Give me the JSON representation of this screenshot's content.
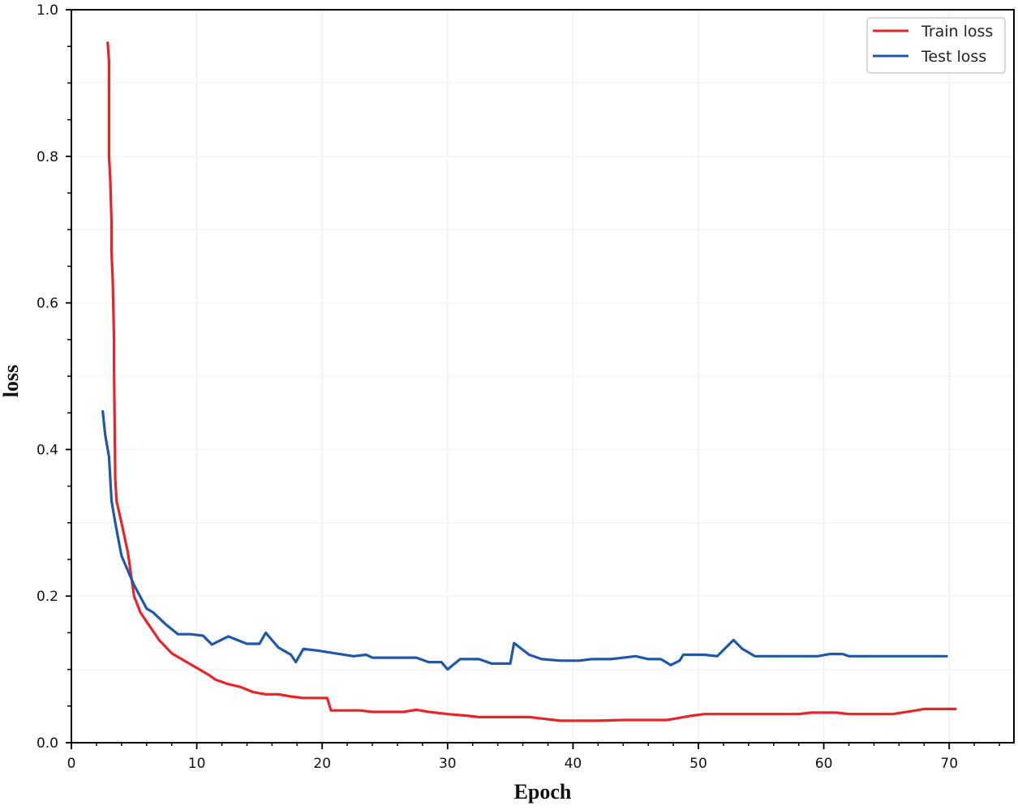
{
  "chart_data": {
    "type": "line",
    "title": "",
    "xlabel": "Epoch",
    "ylabel": "loss",
    "xlim": [
      0,
      75
    ],
    "ylim": [
      0.0,
      1.0
    ],
    "xticks": [
      0,
      10,
      20,
      30,
      40,
      50,
      60,
      70
    ],
    "xtick_labels": [
      "0",
      "10",
      "20",
      "30",
      "40",
      "50",
      "60",
      "70"
    ],
    "yticks": [
      0.0,
      0.2,
      0.4,
      0.6,
      0.8,
      1.0
    ],
    "ytick_labels": [
      "0.0",
      "0.2",
      "0.4",
      "0.6",
      "0.8",
      "1.0"
    ],
    "grid": true,
    "legend_position": "upper right",
    "series": [
      {
        "name": "Train loss",
        "color": "#e8232a",
        "x": [
          2.9,
          3.0,
          3.0,
          3.1,
          3.2,
          3.2,
          3.3,
          3.4,
          3.4,
          3.5,
          3.6,
          4.0,
          4.5,
          5.0,
          5.5,
          6.0,
          7.0,
          8.0,
          8.5,
          10.0,
          11.0,
          11.5,
          12.5,
          13.5,
          14.5,
          15.5,
          16.5,
          17.5,
          18.5,
          19.5,
          20.4,
          20.7,
          22.0,
          23.0,
          24.0,
          25.0,
          26.5,
          27.5,
          28.5,
          30.0,
          31.5,
          32.5,
          34.0,
          35.5,
          36.5,
          37.5,
          39.0,
          40.5,
          42.0,
          44.0,
          46.0,
          47.5,
          48.5,
          49.5,
          50.5,
          52.0,
          54.0,
          56.0,
          58.0,
          59.0,
          60.0,
          61.0,
          62.0,
          64.0,
          65.5,
          67.0,
          68.0,
          70.5
        ],
        "y": [
          0.955,
          0.93,
          0.8,
          0.77,
          0.71,
          0.67,
          0.63,
          0.55,
          0.51,
          0.36,
          0.33,
          0.3,
          0.26,
          0.2,
          0.178,
          0.165,
          0.14,
          0.122,
          0.117,
          0.102,
          0.092,
          0.086,
          0.08,
          0.076,
          0.069,
          0.066,
          0.066,
          0.063,
          0.061,
          0.061,
          0.061,
          0.044,
          0.044,
          0.044,
          0.042,
          0.042,
          0.042,
          0.045,
          0.042,
          0.039,
          0.037,
          0.035,
          0.035,
          0.035,
          0.035,
          0.033,
          0.03,
          0.03,
          0.03,
          0.031,
          0.031,
          0.031,
          0.034,
          0.037,
          0.039,
          0.039,
          0.039,
          0.039,
          0.039,
          0.041,
          0.041,
          0.041,
          0.039,
          0.039,
          0.039,
          0.043,
          0.046,
          0.046
        ]
      },
      {
        "name": "Test loss",
        "color": "#1f58a8",
        "x": [
          2.5,
          2.7,
          3.0,
          3.2,
          3.5,
          4.0,
          5.0,
          6.0,
          6.5,
          7.5,
          8.5,
          9.5,
          10.5,
          11.2,
          12.5,
          14.0,
          15.0,
          15.5,
          16.5,
          17.5,
          17.9,
          18.5,
          19.5,
          21.0,
          22.5,
          23.5,
          24.0,
          25.5,
          27.5,
          28.5,
          29.5,
          30.0,
          31.0,
          32.5,
          33.5,
          34.5,
          35.0,
          35.3,
          36.5,
          37.5,
          39.0,
          40.5,
          41.5,
          43.0,
          45.0,
          46.0,
          47.0,
          47.8,
          48.5,
          48.8,
          50.5,
          51.5,
          52.8,
          53.5,
          54.5,
          56.0,
          58.0,
          59.5,
          60.5,
          61.5,
          62.0,
          64.0,
          66.0,
          68.0,
          69.8
        ],
        "y": [
          0.452,
          0.42,
          0.39,
          0.33,
          0.3,
          0.255,
          0.215,
          0.183,
          0.178,
          0.162,
          0.148,
          0.148,
          0.146,
          0.134,
          0.145,
          0.135,
          0.135,
          0.15,
          0.13,
          0.12,
          0.11,
          0.128,
          0.126,
          0.122,
          0.118,
          0.12,
          0.116,
          0.116,
          0.116,
          0.11,
          0.11,
          0.1,
          0.114,
          0.114,
          0.108,
          0.108,
          0.108,
          0.136,
          0.12,
          0.114,
          0.112,
          0.112,
          0.114,
          0.114,
          0.118,
          0.114,
          0.114,
          0.106,
          0.112,
          0.12,
          0.12,
          0.118,
          0.14,
          0.128,
          0.118,
          0.118,
          0.118,
          0.118,
          0.121,
          0.121,
          0.118,
          0.118,
          0.118,
          0.118,
          0.118
        ]
      }
    ]
  },
  "legend": {
    "items": [
      {
        "label": "Train loss",
        "color": "#e8232a"
      },
      {
        "label": "Test loss",
        "color": "#1f58a8"
      }
    ]
  },
  "axes": {
    "x_title": "Epoch",
    "y_title": "loss"
  }
}
